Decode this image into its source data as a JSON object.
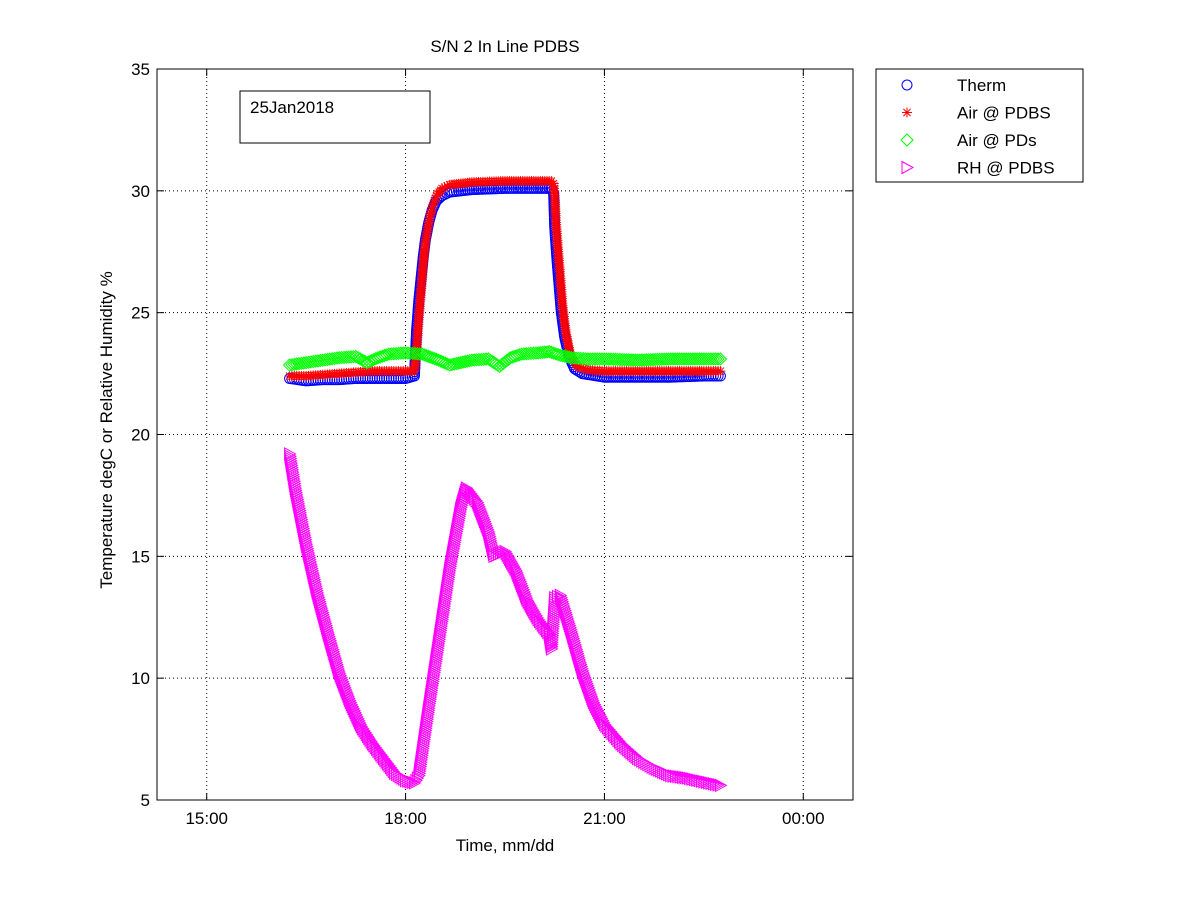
{
  "chart_data": {
    "type": "scatter",
    "title": "S/N 2 In Line PDBS",
    "xlabel": "Time, mm/dd",
    "ylabel": "Temperature degC or Relative Humidity %",
    "annotation": "25Jan2018",
    "xlim": [
      "14:15",
      "00:45"
    ],
    "ylim": [
      5,
      35
    ],
    "grid": true,
    "legend_position": "outside-top-right",
    "xticks": [
      {
        "value": "15:00",
        "label": "15:00"
      },
      {
        "value": "18:00",
        "label": "18:00"
      },
      {
        "value": "21:00",
        "label": "21:00"
      },
      {
        "value": "00:00",
        "label": "00:00"
      }
    ],
    "yticks": [
      5,
      10,
      15,
      20,
      25,
      30,
      35
    ],
    "series": [
      {
        "name": "Therm",
        "marker": "circle",
        "color": "#0000ff",
        "points": [
          [
            "16:15",
            22.3
          ],
          [
            "16:30",
            22.2
          ],
          [
            "16:45",
            22.25
          ],
          [
            "17:00",
            22.25
          ],
          [
            "17:15",
            22.3
          ],
          [
            "17:30",
            22.3
          ],
          [
            "17:45",
            22.3
          ],
          [
            "18:00",
            22.3
          ],
          [
            "18:08",
            22.4
          ],
          [
            "18:10",
            24.3
          ],
          [
            "18:12",
            25.5
          ],
          [
            "18:14",
            26.4
          ],
          [
            "18:16",
            27.3
          ],
          [
            "18:18",
            28.0
          ],
          [
            "18:21",
            28.7
          ],
          [
            "18:24",
            29.2
          ],
          [
            "18:28",
            29.6
          ],
          [
            "18:33",
            29.8
          ],
          [
            "18:40",
            29.95
          ],
          [
            "19:00",
            30.05
          ],
          [
            "19:30",
            30.1
          ],
          [
            "20:00",
            30.1
          ],
          [
            "20:12",
            30.1
          ],
          [
            "20:14",
            29.9
          ],
          [
            "20:15",
            28.5
          ],
          [
            "20:17",
            27.2
          ],
          [
            "20:19",
            26.1
          ],
          [
            "20:21",
            25.0
          ],
          [
            "20:24",
            24.0
          ],
          [
            "20:28",
            23.2
          ],
          [
            "20:33",
            22.7
          ],
          [
            "20:40",
            22.5
          ],
          [
            "21:00",
            22.35
          ],
          [
            "21:30",
            22.35
          ],
          [
            "22:00",
            22.35
          ],
          [
            "22:30",
            22.4
          ],
          [
            "22:45",
            22.4
          ]
        ]
      },
      {
        "name": "Air @ PDBS",
        "marker": "asterisk",
        "color": "#ff0000",
        "points": [
          [
            "16:15",
            22.4
          ],
          [
            "16:30",
            22.4
          ],
          [
            "16:45",
            22.45
          ],
          [
            "17:00",
            22.5
          ],
          [
            "17:15",
            22.55
          ],
          [
            "17:30",
            22.6
          ],
          [
            "17:45",
            22.6
          ],
          [
            "18:00",
            22.6
          ],
          [
            "18:08",
            22.6
          ],
          [
            "18:10",
            23.5
          ],
          [
            "18:12",
            24.8
          ],
          [
            "18:14",
            25.9
          ],
          [
            "18:16",
            27.0
          ],
          [
            "18:18",
            27.9
          ],
          [
            "18:21",
            28.7
          ],
          [
            "18:24",
            29.3
          ],
          [
            "18:28",
            29.8
          ],
          [
            "18:33",
            30.1
          ],
          [
            "18:40",
            30.25
          ],
          [
            "19:00",
            30.35
          ],
          [
            "19:30",
            30.4
          ],
          [
            "20:00",
            30.4
          ],
          [
            "20:12",
            30.4
          ],
          [
            "20:14",
            30.3
          ],
          [
            "20:15",
            29.8
          ],
          [
            "20:16",
            28.8
          ],
          [
            "20:18",
            27.6
          ],
          [
            "20:20",
            26.5
          ],
          [
            "20:22",
            25.3
          ],
          [
            "20:25",
            24.2
          ],
          [
            "20:29",
            23.3
          ],
          [
            "20:35",
            22.8
          ],
          [
            "20:45",
            22.65
          ],
          [
            "21:00",
            22.6
          ],
          [
            "21:30",
            22.6
          ],
          [
            "22:00",
            22.6
          ],
          [
            "22:30",
            22.6
          ],
          [
            "22:45",
            22.6
          ]
        ]
      },
      {
        "name": "Air @ PDs",
        "marker": "diamond",
        "color": "#00ff00",
        "points": [
          [
            "16:15",
            22.85
          ],
          [
            "16:30",
            22.95
          ],
          [
            "16:45",
            23.05
          ],
          [
            "17:00",
            23.15
          ],
          [
            "17:15",
            23.2
          ],
          [
            "17:25",
            22.95
          ],
          [
            "17:35",
            23.15
          ],
          [
            "17:45",
            23.3
          ],
          [
            "18:00",
            23.35
          ],
          [
            "18:15",
            23.3
          ],
          [
            "18:30",
            23.05
          ],
          [
            "18:40",
            22.85
          ],
          [
            "18:50",
            22.95
          ],
          [
            "19:00",
            23.05
          ],
          [
            "19:15",
            23.1
          ],
          [
            "19:25",
            22.8
          ],
          [
            "19:35",
            23.15
          ],
          [
            "19:45",
            23.3
          ],
          [
            "20:00",
            23.35
          ],
          [
            "20:10",
            23.4
          ],
          [
            "20:20",
            23.25
          ],
          [
            "20:30",
            23.15
          ],
          [
            "20:45",
            23.1
          ],
          [
            "21:00",
            23.1
          ],
          [
            "21:30",
            23.05
          ],
          [
            "22:00",
            23.1
          ],
          [
            "22:30",
            23.1
          ],
          [
            "22:45",
            23.1
          ]
        ]
      },
      {
        "name": "RH @ PDBS",
        "marker": "triangle-right",
        "color": "#ff00ff",
        "points": [
          [
            "16:15",
            19.2
          ],
          [
            "16:20",
            17.8
          ],
          [
            "16:30",
            15.5
          ],
          [
            "16:40",
            13.5
          ],
          [
            "16:50",
            11.8
          ],
          [
            "17:00",
            10.2
          ],
          [
            "17:10",
            9.0
          ],
          [
            "17:20",
            8.0
          ],
          [
            "17:30",
            7.3
          ],
          [
            "17:40",
            6.7
          ],
          [
            "17:50",
            6.1
          ],
          [
            "18:00",
            5.8
          ],
          [
            "18:08",
            5.7
          ],
          [
            "18:12",
            6.0
          ],
          [
            "18:20",
            8.5
          ],
          [
            "18:30",
            11.5
          ],
          [
            "18:40",
            14.5
          ],
          [
            "18:50",
            17.0
          ],
          [
            "18:55",
            17.8
          ],
          [
            "19:05",
            17.2
          ],
          [
            "19:15",
            16.0
          ],
          [
            "19:20",
            15.0
          ],
          [
            "19:30",
            15.2
          ],
          [
            "19:40",
            14.4
          ],
          [
            "19:50",
            13.2
          ],
          [
            "20:00",
            12.4
          ],
          [
            "20:10",
            11.8
          ],
          [
            "20:12",
            11.2
          ],
          [
            "20:15",
            13.3
          ],
          [
            "20:20",
            13.4
          ],
          [
            "20:30",
            11.9
          ],
          [
            "20:40",
            10.3
          ],
          [
            "20:50",
            9.0
          ],
          [
            "21:00",
            8.1
          ],
          [
            "21:15",
            7.3
          ],
          [
            "21:30",
            6.7
          ],
          [
            "21:45",
            6.3
          ],
          [
            "22:00",
            6.0
          ],
          [
            "22:15",
            5.9
          ],
          [
            "22:30",
            5.75
          ],
          [
            "22:45",
            5.6
          ]
        ]
      }
    ]
  }
}
